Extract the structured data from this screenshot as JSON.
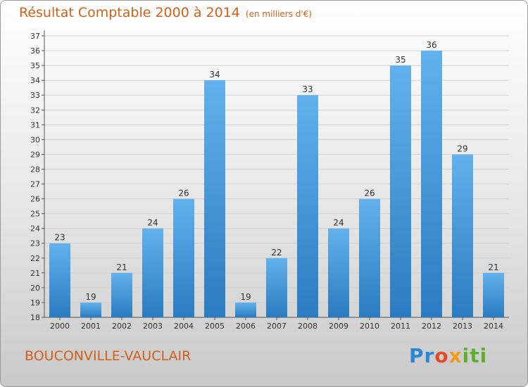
{
  "header": {
    "title": "Résultat Comptable 2000 à 2014",
    "subtitle": "(en milliers d'€)"
  },
  "footer": {
    "commune": "BOUCONVILLE-VAUCLAIR",
    "logo_parts": [
      "Pr",
      "o",
      "x",
      "iti"
    ]
  },
  "colors": {
    "title": "#d2601a",
    "bar_top": "#63b1ec",
    "bar_bottom": "#2a7cc0"
  },
  "chart_data": {
    "type": "bar",
    "categories": [
      "2000",
      "2001",
      "2002",
      "2003",
      "2004",
      "2005",
      "2006",
      "2007",
      "2008",
      "2009",
      "2010",
      "2011",
      "2012",
      "2013",
      "2014"
    ],
    "values": [
      23,
      19,
      21,
      24,
      26,
      34,
      19,
      22,
      33,
      24,
      26,
      35,
      36,
      29,
      21
    ],
    "title": "Résultat Comptable 2000 à 2014",
    "subtitle": "(en milliers d'€)",
    "xlabel": "",
    "ylabel": "",
    "ylim": [
      18,
      37
    ],
    "yticks": [
      18,
      19,
      20,
      21,
      22,
      23,
      24,
      25,
      26,
      27,
      28,
      29,
      30,
      31,
      32,
      33,
      34,
      35,
      36,
      37
    ],
    "grid": true,
    "legend": "none"
  }
}
